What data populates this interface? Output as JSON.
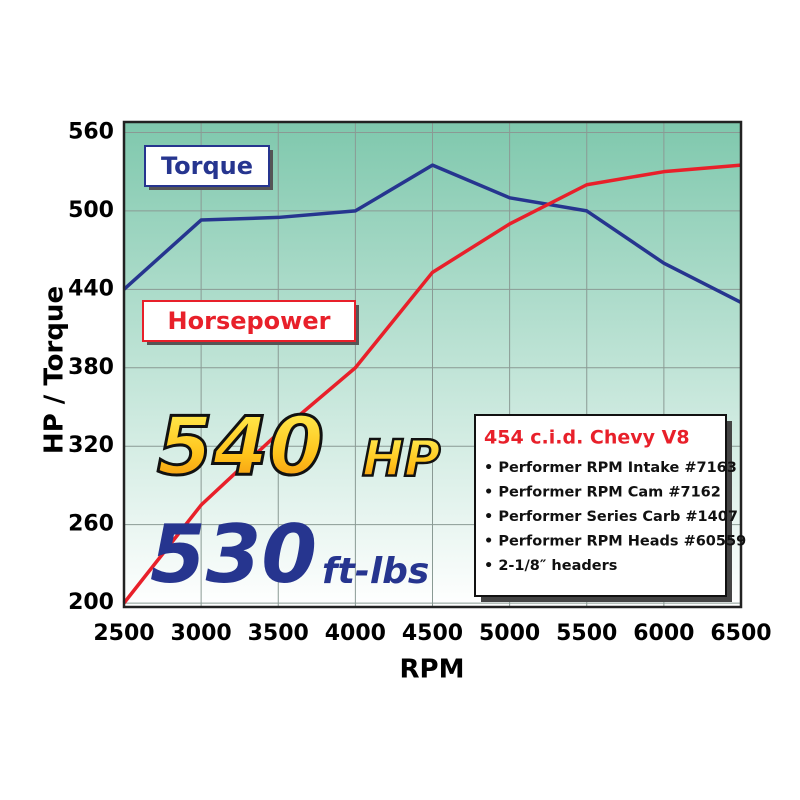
{
  "chart_data": {
    "type": "line",
    "x_label": "RPM",
    "y_label": "HP / Torque",
    "x": [
      2500,
      3000,
      3500,
      4000,
      4500,
      5000,
      5500,
      6000,
      6500
    ],
    "series": [
      {
        "name": "Torque",
        "color": "#26358f",
        "values": [
          440,
          493,
          495,
          500,
          535,
          510,
          500,
          460,
          430
        ]
      },
      {
        "name": "Horsepower",
        "color": "#e8202a",
        "values": [
          200,
          275,
          330,
          380,
          453,
          490,
          520,
          530,
          535
        ]
      }
    ],
    "xlim": [
      2500,
      6500
    ],
    "xticks": [
      2500,
      3000,
      3500,
      4000,
      4500,
      5000,
      5500,
      6000,
      6500
    ],
    "ylim": [
      197,
      568
    ],
    "yticks": [
      200,
      260,
      320,
      380,
      440,
      500,
      560
    ],
    "grid": true,
    "annotations": {
      "hp_number": "540",
      "hp_unit": "HP",
      "torque_number": "530",
      "torque_unit": "ft-lbs"
    },
    "spec_box": {
      "title": "454 c.i.d. Chevy V8",
      "items": [
        "• Performer RPM Intake #7163",
        "• Performer RPM Cam #7162",
        "• Performer Series Carb #1407",
        "• Performer RPM Heads #60559",
        "• 2-1/8″ headers"
      ]
    }
  }
}
